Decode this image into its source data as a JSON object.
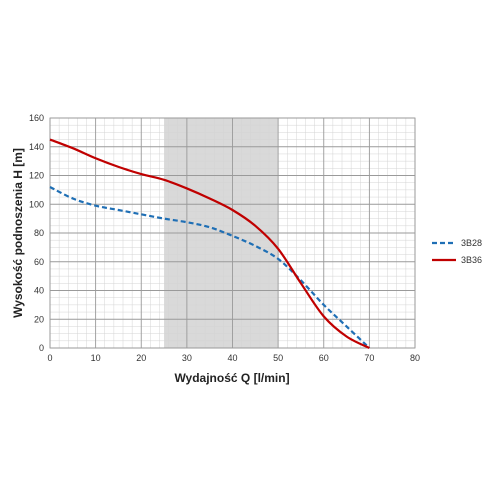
{
  "chart_data": {
    "type": "line",
    "xlabel": "Wydajność Q [l/min]",
    "ylabel": "Wysokość podnoszenia H [m]",
    "xlim": [
      0,
      80
    ],
    "ylim": [
      0,
      160
    ],
    "xticks": [
      "0",
      "10",
      "20",
      "30",
      "40",
      "50",
      "60",
      "70",
      "80"
    ],
    "yticks": [
      "0",
      "20",
      "40",
      "60",
      "80",
      "100",
      "120",
      "140",
      "160"
    ],
    "grid": true,
    "shaded_range": [
      25,
      50
    ],
    "legend_position": "right",
    "series": [
      {
        "name": "3B28",
        "color": "#1f6fb5",
        "style": "dashed",
        "x": [
          0,
          5,
          10,
          15,
          20,
          25,
          30,
          35,
          40,
          45,
          50,
          55,
          60,
          65,
          70
        ],
        "y": [
          112,
          104,
          99,
          96,
          93,
          90,
          87.5,
          84,
          78,
          71,
          62,
          47,
          30,
          15,
          0
        ]
      },
      {
        "name": "3B36",
        "color": "#c00000",
        "style": "solid",
        "x": [
          0,
          5,
          10,
          15,
          20,
          25,
          30,
          35,
          40,
          45,
          50,
          55,
          60,
          65,
          70
        ],
        "y": [
          145,
          139,
          132,
          126,
          121,
          117,
          111,
          104,
          96,
          85,
          69,
          45,
          22,
          8,
          0
        ]
      }
    ]
  }
}
